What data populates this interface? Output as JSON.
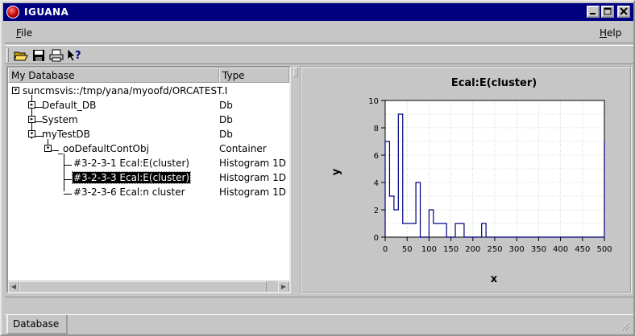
{
  "window": {
    "title": "IGUANA"
  },
  "menubar": {
    "file": {
      "label": "File",
      "underline": "F",
      "rest": "ile"
    },
    "help": {
      "label": "Help",
      "underline": "H",
      "rest": "elp"
    }
  },
  "toolbar": {
    "icons": [
      "open-folder-icon",
      "save-icon",
      "print-icon",
      "context-help-icon"
    ]
  },
  "tree": {
    "columns": [
      "My Database",
      "Type"
    ],
    "rows": [
      {
        "name": "suncmsvis::/tmp/yana/myoofd/ORCATEST.I",
        "type": "",
        "expander": "minus"
      },
      {
        "name": "Default_DB",
        "type": "Db",
        "expander": "plus"
      },
      {
        "name": "System",
        "type": "Db",
        "expander": "plus"
      },
      {
        "name": "myTestDB",
        "type": "Db",
        "expander": "minus"
      },
      {
        "name": "_ooDefaultContObj",
        "type": "Container",
        "expander": "minus"
      },
      {
        "name": "#3-2-3-1 Ecal:E(cluster)",
        "type": "Histogram 1D",
        "expander": ""
      },
      {
        "name": "#3-2-3-3 Ecal:E(cluster)",
        "type": "Histogram 1D",
        "expander": "",
        "selected": true
      },
      {
        "name": "#3-2-3-6 Ecal:n cluster",
        "type": "Histogram 1D",
        "expander": ""
      }
    ]
  },
  "tabs": [
    {
      "label": "Database",
      "active": true
    }
  ],
  "colors": {
    "titlebar": "#000080",
    "plot_line": "#000080",
    "window_bg": "#c6c6c6"
  },
  "chart_data": {
    "type": "line",
    "title": "Ecal:E(cluster)",
    "xlabel": "x",
    "ylabel": "y",
    "xlim": [
      0,
      500
    ],
    "ylim": [
      0,
      10
    ],
    "xticks": [
      0,
      50,
      100,
      150,
      200,
      250,
      300,
      350,
      400,
      450,
      500
    ],
    "yticks": [
      0,
      2,
      4,
      6,
      8,
      10
    ],
    "grid": true,
    "series": [
      {
        "step": true,
        "bin_edges": [
          0,
          10,
          20,
          30,
          40,
          50,
          60,
          70,
          80,
          90,
          100,
          110,
          120,
          130,
          140,
          150,
          160,
          170,
          180,
          190,
          200,
          210,
          220,
          230,
          240,
          250,
          500
        ],
        "values": [
          7,
          3,
          2,
          9,
          1,
          1,
          1,
          4,
          0,
          0,
          2,
          1,
          1,
          1,
          0,
          0,
          1,
          1,
          0,
          0,
          0,
          0,
          1,
          0,
          0,
          0
        ]
      }
    ],
    "last_bin_peak": 7
  }
}
